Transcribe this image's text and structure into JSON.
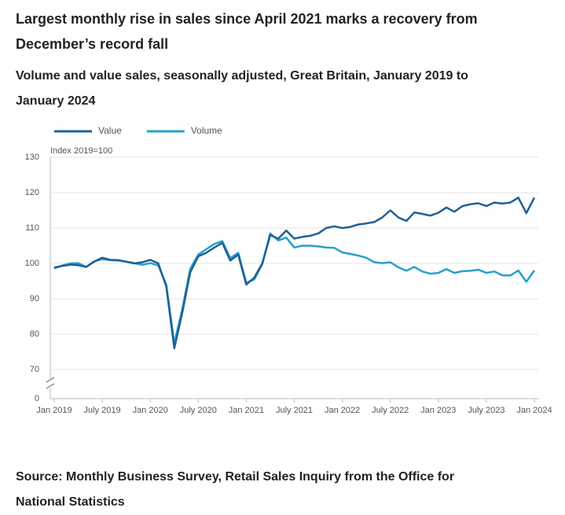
{
  "chart_data": {
    "type": "line",
    "title": "Largest monthly rise in sales since April 2021 marks a recovery from December’s record fall",
    "subtitle": "Volume and value sales, seasonally adjusted, Great Britain, January 2019 to January 2024",
    "y_label": "Index 2019=100",
    "source": "Source: Monthly Business Survey, Retail Sales Inquiry from the Office for National Statistics",
    "categories": [
      "Jan 2019",
      null,
      null,
      null,
      null,
      null,
      "July 2019",
      null,
      null,
      null,
      null,
      null,
      "Jan 2020",
      null,
      null,
      null,
      null,
      null,
      "July 2020",
      null,
      null,
      null,
      null,
      null,
      "Jan 2021",
      null,
      null,
      null,
      null,
      null,
      "July 2021",
      null,
      null,
      null,
      null,
      null,
      "Jan 2022",
      null,
      null,
      null,
      null,
      null,
      "July 2022",
      null,
      null,
      null,
      null,
      null,
      "Jan 2023",
      null,
      null,
      null,
      null,
      null,
      "July 2023",
      null,
      null,
      null,
      null,
      null,
      "Jan 2024"
    ],
    "series": [
      {
        "name": "Value",
        "color": "#206095",
        "values": [
          98.8,
          99.3,
          99.6,
          99.5,
          99.0,
          100.5,
          101.6,
          101.0,
          100.9,
          100.5,
          100.0,
          100.3,
          101.0,
          100.0,
          93.5,
          76.0,
          86.0,
          97.5,
          102.0,
          103.0,
          104.5,
          105.8,
          100.8,
          102.5,
          94.0,
          96.0,
          100.0,
          108.0,
          107.0,
          109.3,
          107.0,
          107.5,
          107.8,
          108.5,
          110.0,
          110.5,
          110.0,
          110.3,
          111.0,
          111.3,
          111.7,
          113.0,
          115.0,
          113.0,
          112.0,
          114.4,
          114.0,
          113.5,
          114.3,
          115.8,
          114.6,
          116.2,
          116.7,
          117.0,
          116.2,
          117.2,
          116.9,
          117.2,
          118.6,
          114.2,
          118.6
        ]
      },
      {
        "name": "Volume",
        "color": "#27a0cc",
        "values": [
          98.6,
          99.4,
          100.0,
          100.1,
          99.0,
          100.6,
          101.2,
          100.9,
          100.8,
          100.5,
          100.1,
          99.6,
          100.1,
          99.4,
          94.0,
          77.5,
          87.0,
          98.5,
          102.5,
          104.0,
          105.5,
          106.3,
          101.5,
          103.0,
          94.5,
          95.5,
          99.8,
          108.5,
          106.5,
          107.3,
          104.5,
          105.0,
          105.0,
          104.8,
          104.5,
          104.4,
          103.1,
          102.7,
          102.2,
          101.6,
          100.3,
          100.1,
          100.3,
          98.9,
          97.9,
          99.0,
          97.7,
          97.1,
          97.3,
          98.4,
          97.3,
          97.8,
          97.9,
          98.2,
          97.3,
          97.7,
          96.6,
          96.6,
          98.0,
          94.8,
          98.0
        ]
      }
    ],
    "ylim": [
      0,
      130
    ],
    "yticks": [
      0,
      70,
      80,
      90,
      100,
      110,
      120,
      130
    ],
    "y_axis_break": true,
    "grid": true,
    "legend": "top-left"
  }
}
